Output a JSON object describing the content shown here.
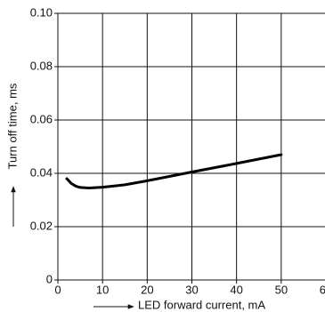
{
  "chart_data": {
    "type": "line",
    "xlabel": "LED forward current, mA",
    "ylabel": "Turn off time, ms",
    "x": [
      2,
      3,
      4,
      5,
      7,
      10,
      15,
      20,
      30,
      40,
      50
    ],
    "series": [
      {
        "name": null,
        "color": "#000000",
        "values": [
          0.038,
          0.0362,
          0.0352,
          0.0347,
          0.0345,
          0.0348,
          0.0357,
          0.0372,
          0.0405,
          0.0437,
          0.047
        ]
      }
    ],
    "xlim": [
      0,
      60
    ],
    "xticks": [
      0,
      10,
      20,
      30,
      40,
      50,
      60
    ],
    "ylim": [
      0,
      0.1
    ],
    "yticks": [
      0,
      {
        "value": 0.02,
        "label": "0.02"
      },
      {
        "value": 0.04,
        "label": "0.04"
      },
      {
        "value": 0.06,
        "label": "0.06"
      },
      {
        "value": 0.08,
        "label": "0.08"
      },
      {
        "value": 0.1,
        "label": "0.10"
      }
    ],
    "grid": true
  }
}
